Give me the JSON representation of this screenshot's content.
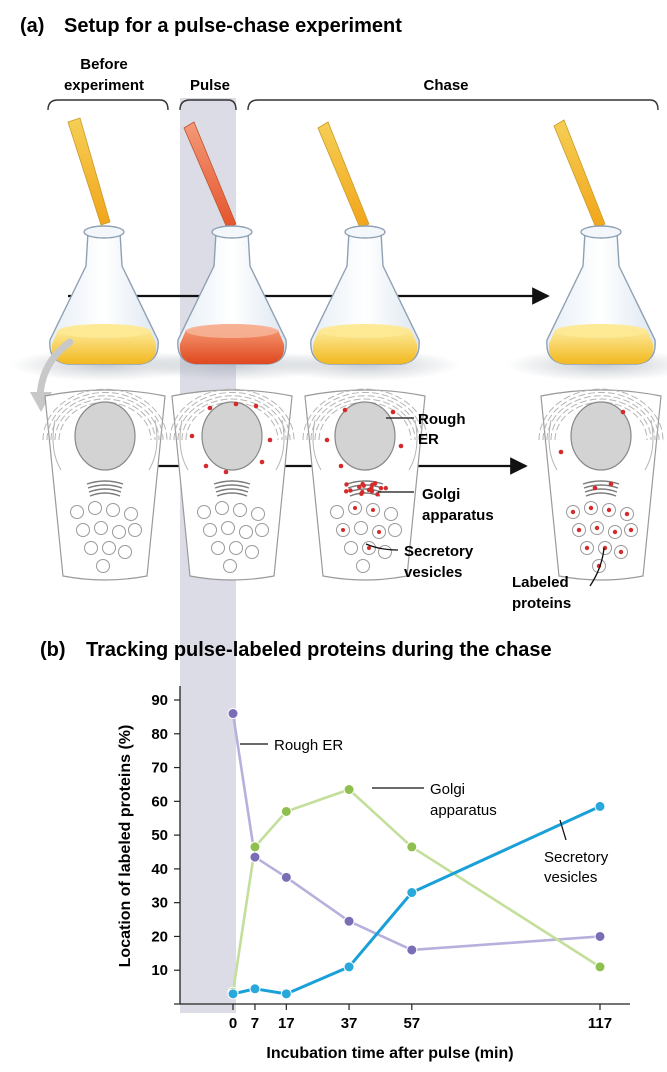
{
  "part_a": {
    "letter": "(a)",
    "title": "Setup for a pulse-chase experiment",
    "stage_before_line1": "Before",
    "stage_before_line2": "experiment",
    "stage_pulse": "Pulse",
    "stage_chase": "Chase",
    "label_rough_er_line1": "Rough",
    "label_rough_er_line2": "ER",
    "label_golgi_line1": "Golgi",
    "label_golgi_line2": "apparatus",
    "label_secretory_line1": "Secretory",
    "label_secretory_line2": "vesicles",
    "label_labeled_line1": "Labeled",
    "label_labeled_line2": "proteins",
    "colors": {
      "unlabeled_medium": "#f5c23a",
      "labeled_medium": "#e8562b",
      "label_dot": "#d62a2a",
      "pulse_band": "#dcdce6"
    }
  },
  "part_b": {
    "letter": "(b)",
    "title": "Tracking pulse-labeled proteins during the chase"
  },
  "chart_data": {
    "type": "line",
    "title": "",
    "xlabel": "Incubation time after pulse (min)",
    "ylabel": "Location of labeled proteins (%)",
    "x": [
      0,
      7,
      17,
      37,
      57,
      117
    ],
    "xticks": [
      "0",
      "7",
      "17",
      "37",
      "57",
      "117"
    ],
    "yticks": [
      10,
      20,
      30,
      40,
      50,
      60,
      70,
      80,
      90
    ],
    "ylim": [
      0,
      90
    ],
    "grid": false,
    "series": [
      {
        "name": "Rough ER",
        "values": [
          86,
          43.5,
          37.5,
          24.5,
          16,
          20
        ],
        "color": "#7b6cb6",
        "line_color": "#b8b0dc"
      },
      {
        "name": "Golgi apparatus",
        "values": [
          3.5,
          46.5,
          57,
          63.5,
          46.5,
          11
        ],
        "color": "#8fbf4f",
        "line_color": "#c3df9b"
      },
      {
        "name": "Secretory vesicles",
        "values": [
          3,
          4.5,
          3,
          11,
          33,
          58.5
        ],
        "color": "#29a8dc",
        "line_color": "#1aa0d8"
      }
    ],
    "series_labels": {
      "rough_er": "Rough ER",
      "golgi_line1": "Golgi",
      "golgi_line2": "apparatus",
      "secretory_line1": "Secretory",
      "secretory_line2": "vesicles"
    }
  }
}
